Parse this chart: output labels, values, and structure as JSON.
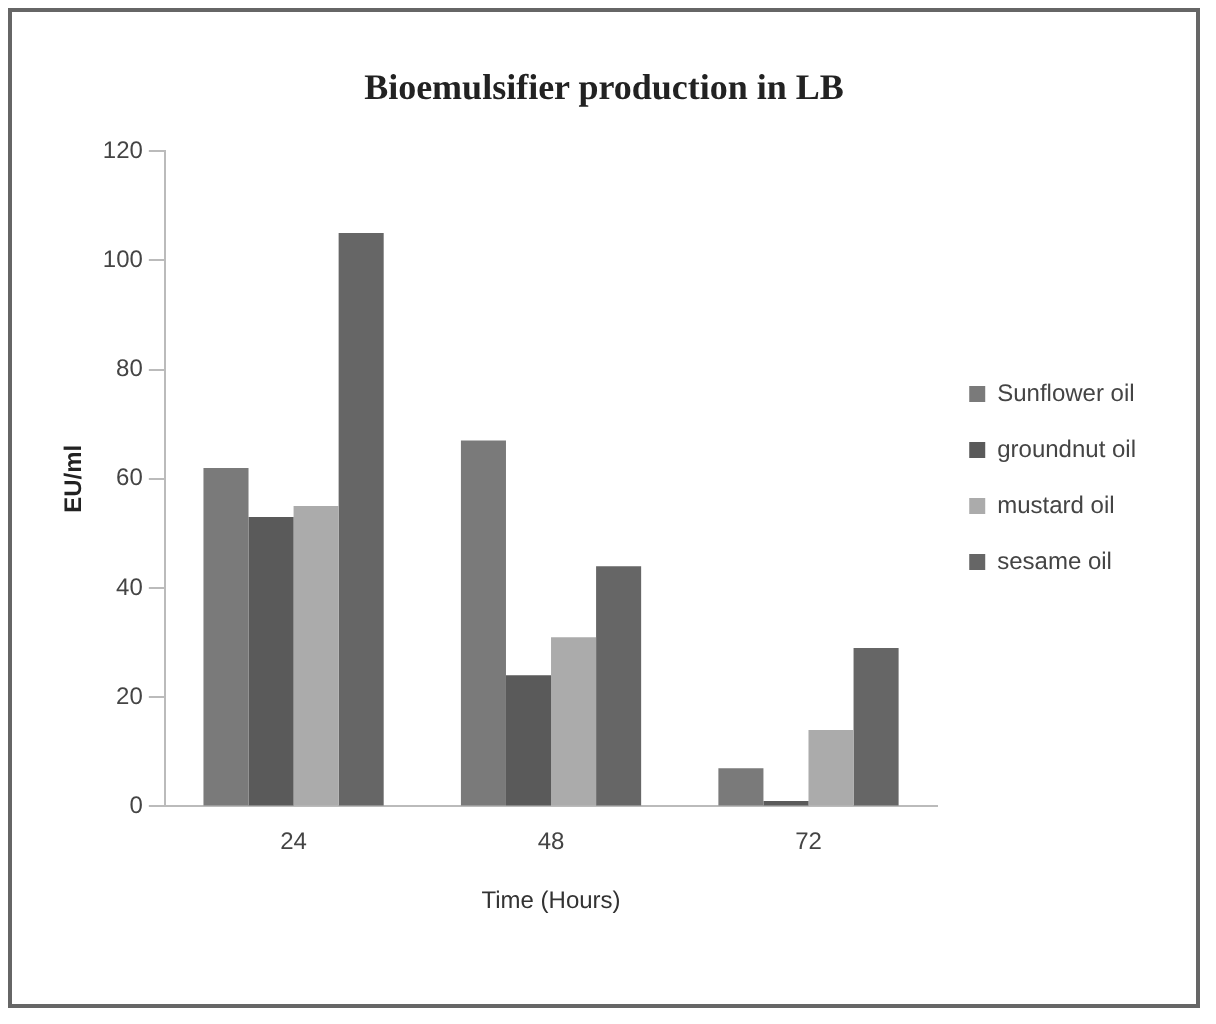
{
  "chart_data": {
    "type": "bar",
    "title": "Bioemulsifier production in LB",
    "xlabel": "Time (Hours)",
    "ylabel": "EU/ml",
    "categories": [
      "24",
      "48",
      "72"
    ],
    "series": [
      {
        "name": "Sunflower oil",
        "color": "#7a7a7a",
        "values": [
          62,
          67,
          7
        ]
      },
      {
        "name": "groundnut oil",
        "color": "#5a5a5a",
        "values": [
          53,
          24,
          1
        ]
      },
      {
        "name": "mustard oil",
        "color": "#ababab",
        "values": [
          55,
          31,
          14
        ]
      },
      {
        "name": "sesame oil",
        "color": "#666666",
        "values": [
          105,
          44,
          29
        ]
      }
    ],
    "ylim": [
      0,
      120
    ],
    "yticks": [
      0,
      20,
      40,
      60,
      80,
      100,
      120
    ],
    "grid": false,
    "legend": "right"
  }
}
